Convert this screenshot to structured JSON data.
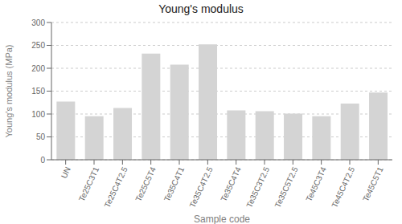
{
  "chart_data": {
    "type": "bar",
    "title": "Young's modulus",
    "xlabel": "Sample code",
    "ylabel": "Young's modulus (MPa)",
    "categories": [
      "UN",
      "Te25C3T1",
      "Te25C4T2.5",
      "Te25C5T4",
      "Te35C4T1",
      "Te35C4T2.5",
      "Te35C4T4",
      "Te35C3T2.5",
      "Te35C5T2.5",
      "Te45C3T4",
      "Te45C4T2.5",
      "Te45C5T1"
    ],
    "values": [
      127,
      95,
      113,
      232,
      208,
      252,
      108,
      106,
      101,
      95,
      123,
      147
    ],
    "color": "#d4d4d4",
    "ylim": [
      0,
      300
    ],
    "yticks": [
      0,
      50,
      100,
      150,
      200,
      250,
      300
    ],
    "grid": true
  }
}
